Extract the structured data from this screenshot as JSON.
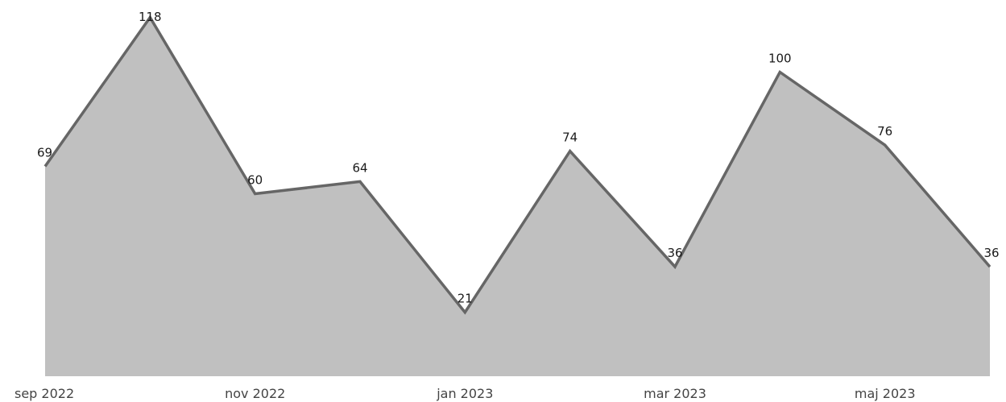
{
  "chart_data": {
    "type": "area",
    "x": [
      "sep 2022",
      "okt 2022",
      "nov 2022",
      "dec 2022",
      "jan 2023",
      "feb 2023",
      "mar 2023",
      "apr 2023",
      "maj 2023",
      "jun 2023"
    ],
    "series": [
      {
        "values": [
          69,
          118,
          60,
          64,
          21,
          74,
          36,
          100,
          76,
          36
        ]
      }
    ],
    "x_tick_labels": [
      "sep 2022",
      "nov 2022",
      "jan 2023",
      "mar 2023",
      "maj 2023"
    ],
    "ylim": [
      0,
      120
    ],
    "grid": false,
    "legend": "none",
    "data_labels": true,
    "colors": {
      "fill": "#c0c0c0",
      "line": "#666666",
      "label": "#1a1a1a",
      "tick": "#444444"
    }
  }
}
